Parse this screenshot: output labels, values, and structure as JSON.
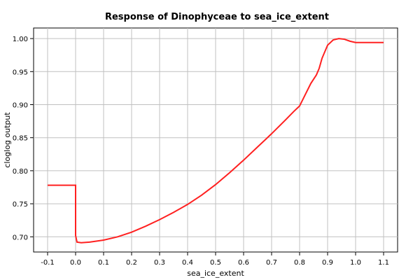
{
  "chart_data": {
    "type": "line",
    "title": "Response of Dinophyceae to sea_ice_extent",
    "xlabel": "sea_ice_extent",
    "ylabel": "cloglog output",
    "xlim": [
      -0.15,
      1.15
    ],
    "ylim": [
      0.677,
      1.016
    ],
    "x_ticks": [
      -0.1,
      0.0,
      0.1,
      0.2,
      0.3,
      0.4,
      0.5,
      0.6,
      0.7,
      0.8,
      0.9,
      1.0,
      1.1
    ],
    "x_tick_labels": [
      "-0.1",
      "0.0",
      "0.1",
      "0.2",
      "0.3",
      "0.4",
      "0.5",
      "0.6",
      "0.7",
      "0.8",
      "0.9",
      "1.0",
      "1.1"
    ],
    "y_ticks": [
      0.7,
      0.75,
      0.8,
      0.85,
      0.9,
      0.95,
      1.0
    ],
    "y_tick_labels": [
      "0.70",
      "0.75",
      "0.80",
      "0.85",
      "0.90",
      "0.95",
      "1.00"
    ],
    "grid": true,
    "series_color": "#ff2020",
    "series": [
      {
        "x": [
          -0.1,
          -0.05,
          0.0,
          0.0,
          0.005,
          0.02,
          0.05,
          0.1,
          0.15,
          0.2,
          0.25,
          0.3,
          0.35,
          0.4,
          0.45,
          0.5,
          0.55,
          0.6,
          0.65,
          0.7,
          0.75,
          0.78,
          0.8,
          0.82,
          0.84,
          0.86,
          0.87,
          0.88,
          0.9,
          0.92,
          0.94,
          0.96,
          0.98,
          1.0,
          1.05,
          1.1
        ],
        "y": [
          0.778,
          0.778,
          0.778,
          0.702,
          0.692,
          0.691,
          0.692,
          0.695,
          0.7,
          0.707,
          0.716,
          0.726,
          0.737,
          0.749,
          0.763,
          0.779,
          0.797,
          0.816,
          0.836,
          0.856,
          0.877,
          0.89,
          0.898,
          0.915,
          0.932,
          0.945,
          0.955,
          0.97,
          0.99,
          0.998,
          1.0,
          0.999,
          0.996,
          0.994,
          0.994,
          0.994
        ]
      }
    ]
  }
}
